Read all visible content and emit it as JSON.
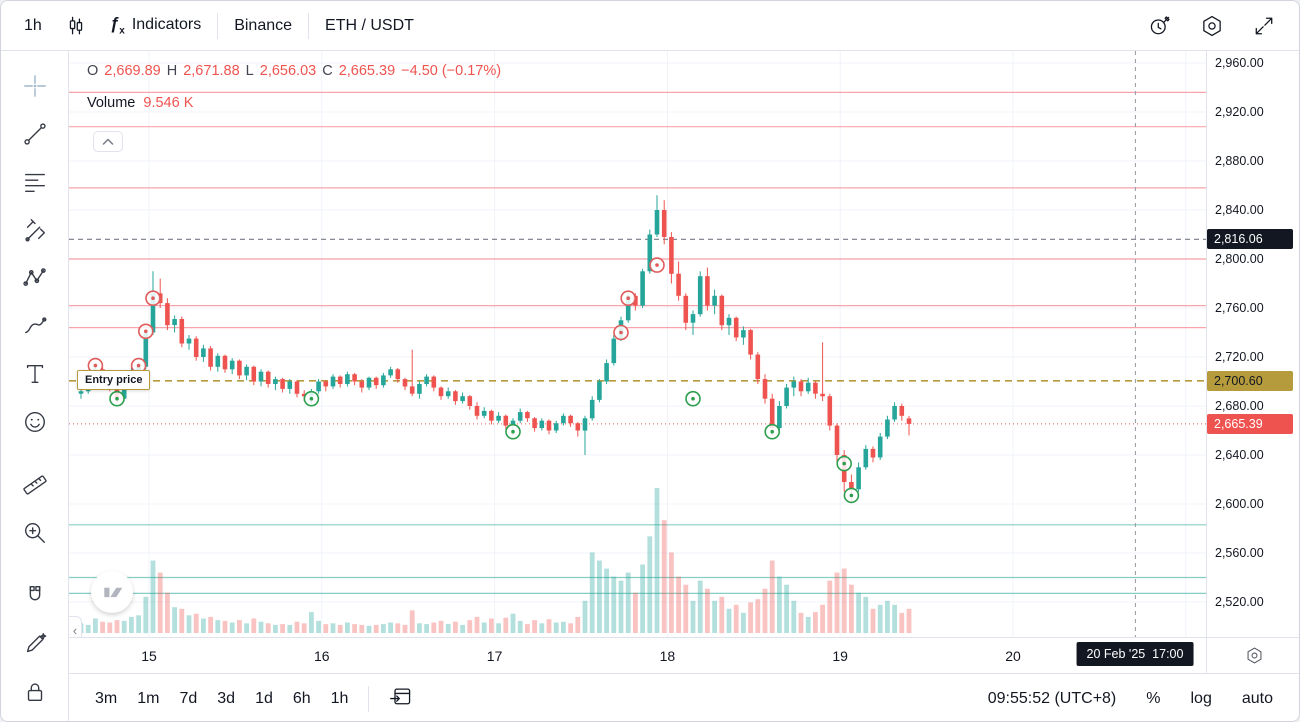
{
  "topbar": {
    "interval": "1h",
    "indicators": "Indicators",
    "exchange": "Binance",
    "symbol": "ETH / USDT"
  },
  "legend": {
    "o_label": "O",
    "o": "2,669.89",
    "h_label": "H",
    "h": "2,671.88",
    "l_label": "L",
    "l": "2,656.03",
    "c_label": "C",
    "c": "2,665.39",
    "change": "−4.50 (−0.17%)",
    "volume_label": "Volume",
    "volume": "9.546 K"
  },
  "chart": {
    "entry_label": "Entry price",
    "crosshair_time": "20 Feb '25  17:00"
  },
  "price_scale": {
    "ticks": [
      "2,960.00",
      "2,920.00",
      "2,880.00",
      "2,840.00",
      "2,800.00",
      "2,760.00",
      "2,720.00",
      "2,680.00",
      "2,640.00",
      "2,600.00",
      "2,560.00",
      "2,520.00"
    ],
    "tags": [
      {
        "text": "2,816.06",
        "bg": "#131722",
        "fg": "#ffffff",
        "value": 2816.06
      },
      {
        "text": "2,700.60",
        "bg": "#b59b3c",
        "fg": "#131722",
        "value": 2700.6
      },
      {
        "text": "2,665.39",
        "bg": "#ef5350",
        "fg": "#ffffff",
        "value": 2665.39
      }
    ]
  },
  "time_axis": {
    "days": [
      "15",
      "16",
      "17",
      "18",
      "19",
      "20"
    ]
  },
  "bottombar": {
    "ranges": [
      "3m",
      "1m",
      "7d",
      "3d",
      "1d",
      "6h",
      "1h"
    ],
    "clock": "09:55:52 (UTC+8)",
    "percent": "%",
    "log": "log",
    "auto": "auto"
  },
  "colors": {
    "up": "#26a69a",
    "down": "#ef5350",
    "vol_up": "rgba(38,166,154,0.35)",
    "vol_down": "rgba(239,83,80,0.35)",
    "grid": "#f0f3fa",
    "red_line": "rgba(242,54,69,0.45)",
    "green_line": "rgba(34,166,148,0.55)",
    "dashed": "#787b86",
    "entry": "#b59b3c",
    "last": "#ef5350",
    "crosshair": "#9598a1",
    "sell_marker": "#e05b5b",
    "buy_marker": "#2e9e4f"
  },
  "chart_data": {
    "type": "candlestick",
    "symbol": "ETH/USDT",
    "interval": "1h",
    "x_day_labels": [
      "15",
      "16",
      "17",
      "18",
      "19",
      "20"
    ],
    "price_axis": {
      "min": 2520,
      "max": 2960,
      "tick_step": 40
    },
    "ohlc_legend": {
      "open": 2669.89,
      "high": 2671.88,
      "low": 2656.03,
      "close": 2665.39,
      "change": -4.5,
      "change_pct": -0.17,
      "volume_k": 9.546
    },
    "levels": {
      "red": [
        2936,
        2908,
        2858,
        2800,
        2762,
        2744
      ],
      "green": [
        2583,
        2540,
        2527
      ],
      "alert_dashed": 2816.06,
      "entry": 2700.6,
      "last": 2665.39
    },
    "markers": [
      {
        "i": 2,
        "p": 2713,
        "side": "sell"
      },
      {
        "i": 8,
        "p": 2713,
        "side": "sell"
      },
      {
        "i": 9,
        "p": 2741,
        "side": "sell"
      },
      {
        "i": 10,
        "p": 2768,
        "side": "sell"
      },
      {
        "i": 75,
        "p": 2740,
        "side": "sell"
      },
      {
        "i": 76,
        "p": 2768,
        "side": "sell"
      },
      {
        "i": 80,
        "p": 2795,
        "side": "sell"
      },
      {
        "i": 5,
        "p": 2686,
        "side": "buy"
      },
      {
        "i": 32,
        "p": 2686,
        "side": "buy"
      },
      {
        "i": 60,
        "p": 2659,
        "side": "buy"
      },
      {
        "i": 85,
        "p": 2686,
        "side": "buy"
      },
      {
        "i": 96,
        "p": 2659,
        "side": "buy"
      },
      {
        "i": 106,
        "p": 2633,
        "side": "buy"
      },
      {
        "i": 107,
        "p": 2607,
        "side": "buy"
      }
    ],
    "candles": [
      [
        2690,
        2694,
        2686,
        2692,
        1.2
      ],
      [
        2692,
        2698,
        2690,
        2696,
        1.0
      ],
      [
        2696,
        2715,
        2694,
        2710,
        1.8
      ],
      [
        2710,
        2712,
        2700,
        2703,
        1.4
      ],
      [
        2703,
        2706,
        2692,
        2695,
        1.3
      ],
      [
        2695,
        2698,
        2682,
        2686,
        1.6
      ],
      [
        2686,
        2700,
        2684,
        2698,
        1.5
      ],
      [
        2698,
        2712,
        2696,
        2709,
        2.0
      ],
      [
        2709,
        2716,
        2705,
        2712,
        2.2
      ],
      [
        2712,
        2743,
        2710,
        2740,
        4.5
      ],
      [
        2740,
        2790,
        2738,
        2772,
        9.0
      ],
      [
        2772,
        2784,
        2760,
        2764,
        7.5
      ],
      [
        2764,
        2768,
        2742,
        2746,
        5.0
      ],
      [
        2746,
        2754,
        2740,
        2751,
        3.2
      ],
      [
        2751,
        2753,
        2728,
        2731,
        3.0
      ],
      [
        2731,
        2738,
        2726,
        2735,
        2.2
      ],
      [
        2735,
        2737,
        2717,
        2720,
        2.4
      ],
      [
        2720,
        2730,
        2716,
        2727,
        1.8
      ],
      [
        2727,
        2729,
        2709,
        2712,
        2.0
      ],
      [
        2712,
        2723,
        2708,
        2721,
        1.6
      ],
      [
        2721,
        2722,
        2707,
        2710,
        1.5
      ],
      [
        2710,
        2719,
        2706,
        2717,
        1.3
      ],
      [
        2717,
        2718,
        2702,
        2705,
        1.6
      ],
      [
        2705,
        2714,
        2701,
        2712,
        1.2
      ],
      [
        2712,
        2713,
        2697,
        2700,
        1.8
      ],
      [
        2700,
        2710,
        2696,
        2708,
        1.4
      ],
      [
        2708,
        2709,
        2695,
        2698,
        1.2
      ],
      [
        2698,
        2704,
        2693,
        2702,
        1.0
      ],
      [
        2702,
        2703,
        2691,
        2694,
        1.1
      ],
      [
        2694,
        2702,
        2690,
        2700,
        1.0
      ],
      [
        2700,
        2701,
        2687,
        2690,
        1.4
      ],
      [
        2690,
        2693,
        2684,
        2688,
        1.2
      ],
      [
        2688,
        2694,
        2682,
        2692,
        2.6
      ],
      [
        2692,
        2702,
        2690,
        2700,
        1.5
      ],
      [
        2700,
        2701,
        2692,
        2696,
        1.1
      ],
      [
        2696,
        2706,
        2694,
        2704,
        1.2
      ],
      [
        2704,
        2705,
        2695,
        2698,
        1.0
      ],
      [
        2698,
        2708,
        2696,
        2706,
        1.3
      ],
      [
        2706,
        2707,
        2697,
        2700,
        1.1
      ],
      [
        2700,
        2702,
        2691,
        2695,
        1.0
      ],
      [
        2695,
        2704,
        2693,
        2703,
        0.9
      ],
      [
        2703,
        2704,
        2694,
        2697,
        1.0
      ],
      [
        2697,
        2707,
        2695,
        2705,
        1.1
      ],
      [
        2705,
        2712,
        2703,
        2710,
        1.3
      ],
      [
        2710,
        2711,
        2699,
        2702,
        1.2
      ],
      [
        2702,
        2703,
        2693,
        2696,
        1.0
      ],
      [
        2696,
        2726,
        2688,
        2690,
        2.8
      ],
      [
        2690,
        2700,
        2686,
        2698,
        1.2
      ],
      [
        2698,
        2706,
        2696,
        2704,
        1.1
      ],
      [
        2704,
        2705,
        2692,
        2695,
        1.3
      ],
      [
        2695,
        2696,
        2685,
        2688,
        1.5
      ],
      [
        2688,
        2695,
        2686,
        2692,
        1.1
      ],
      [
        2692,
        2693,
        2681,
        2684,
        1.4
      ],
      [
        2684,
        2691,
        2682,
        2688,
        1.0
      ],
      [
        2688,
        2689,
        2677,
        2680,
        1.6
      ],
      [
        2680,
        2683,
        2669,
        2672,
        2.0
      ],
      [
        2672,
        2679,
        2670,
        2676,
        1.3
      ],
      [
        2676,
        2677,
        2665,
        2668,
        1.8
      ],
      [
        2668,
        2675,
        2666,
        2672,
        1.2
      ],
      [
        2672,
        2673,
        2661,
        2664,
        1.9
      ],
      [
        2664,
        2670,
        2656,
        2668,
        2.4
      ],
      [
        2668,
        2678,
        2666,
        2675,
        1.5
      ],
      [
        2675,
        2676,
        2667,
        2670,
        1.1
      ],
      [
        2670,
        2671,
        2659,
        2662,
        1.6
      ],
      [
        2662,
        2670,
        2660,
        2668,
        1.2
      ],
      [
        2668,
        2669,
        2657,
        2660,
        1.7
      ],
      [
        2660,
        2668,
        2658,
        2666,
        1.3
      ],
      [
        2666,
        2674,
        2664,
        2672,
        1.4
      ],
      [
        2672,
        2673,
        2663,
        2666,
        1.2
      ],
      [
        2666,
        2667,
        2655,
        2660,
        2.0
      ],
      [
        2660,
        2672,
        2640,
        2670,
        4.0
      ],
      [
        2670,
        2688,
        2668,
        2685,
        10.0
      ],
      [
        2685,
        2702,
        2683,
        2700,
        9.0
      ],
      [
        2700,
        2718,
        2698,
        2715,
        8.0
      ],
      [
        2715,
        2738,
        2713,
        2735,
        7.0
      ],
      [
        2735,
        2753,
        2733,
        2750,
        6.5
      ],
      [
        2750,
        2773,
        2748,
        2770,
        7.5
      ],
      [
        2770,
        2772,
        2758,
        2762,
        5.0
      ],
      [
        2762,
        2792,
        2760,
        2790,
        8.5
      ],
      [
        2790,
        2824,
        2788,
        2820,
        12.0
      ],
      [
        2820,
        2852,
        2818,
        2840,
        18.0
      ],
      [
        2840,
        2848,
        2812,
        2818,
        14.0
      ],
      [
        2818,
        2822,
        2780,
        2788,
        10.0
      ],
      [
        2788,
        2798,
        2766,
        2770,
        7.0
      ],
      [
        2770,
        2772,
        2742,
        2748,
        6.0
      ],
      [
        2748,
        2758,
        2738,
        2755,
        4.0
      ],
      [
        2755,
        2790,
        2753,
        2786,
        6.5
      ],
      [
        2786,
        2793,
        2758,
        2762,
        5.5
      ],
      [
        2762,
        2775,
        2755,
        2770,
        4.0
      ],
      [
        2770,
        2771,
        2742,
        2746,
        4.5
      ],
      [
        2746,
        2755,
        2738,
        2752,
        3.0
      ],
      [
        2752,
        2753,
        2733,
        2736,
        3.5
      ],
      [
        2736,
        2745,
        2730,
        2742,
        2.5
      ],
      [
        2742,
        2743,
        2718,
        2722,
        3.8
      ],
      [
        2722,
        2724,
        2698,
        2702,
        4.2
      ],
      [
        2702,
        2706,
        2682,
        2686,
        5.5
      ],
      [
        2686,
        2690,
        2656,
        2662,
        9.0
      ],
      [
        2662,
        2684,
        2660,
        2680,
        7.0
      ],
      [
        2680,
        2698,
        2678,
        2695,
        6.0
      ],
      [
        2695,
        2704,
        2688,
        2700,
        4.0
      ],
      [
        2700,
        2702,
        2688,
        2692,
        2.5
      ],
      [
        2692,
        2703,
        2690,
        2699,
        2.0
      ],
      [
        2699,
        2700,
        2686,
        2690,
        2.6
      ],
      [
        2690,
        2732,
        2684,
        2688,
        3.5
      ],
      [
        2688,
        2690,
        2660,
        2664,
        6.5
      ],
      [
        2664,
        2666,
        2634,
        2640,
        7.5
      ],
      [
        2640,
        2644,
        2610,
        2618,
        8.0
      ],
      [
        2618,
        2624,
        2602,
        2612,
        6.0
      ],
      [
        2612,
        2634,
        2610,
        2630,
        5.0
      ],
      [
        2630,
        2648,
        2628,
        2645,
        4.5
      ],
      [
        2645,
        2647,
        2634,
        2638,
        3.0
      ],
      [
        2638,
        2658,
        2636,
        2655,
        3.5
      ],
      [
        2655,
        2672,
        2653,
        2669,
        4.0
      ],
      [
        2669,
        2683,
        2667,
        2680,
        3.5
      ],
      [
        2680,
        2682,
        2668,
        2672,
        2.5
      ],
      [
        2669.89,
        2671.88,
        2656.03,
        2665.39,
        3.0
      ]
    ]
  }
}
